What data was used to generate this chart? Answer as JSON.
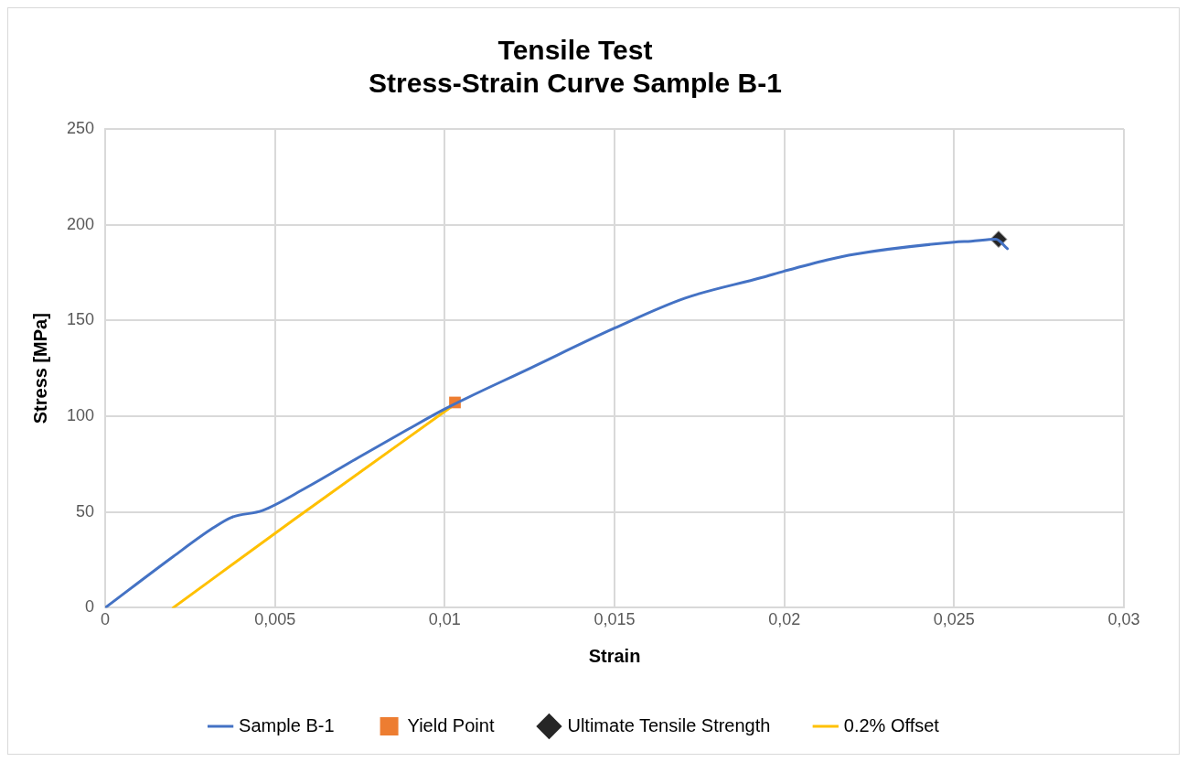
{
  "chart_data": {
    "type": "line",
    "title": "Tensile Test",
    "subtitle": "Stress-Strain Curve Sample B-1",
    "xlabel": "Strain",
    "ylabel": "Stress [MPa]",
    "xlim": [
      0,
      0.03
    ],
    "xticks": [
      0,
      {
        "value": 0.005,
        "label": "0,005"
      },
      {
        "value": 0.01,
        "label": "0,01"
      },
      {
        "value": 0.015,
        "label": "0,015"
      },
      {
        "value": 0.02,
        "label": "0,02"
      },
      {
        "value": 0.025,
        "label": "0,025"
      },
      {
        "value": 0.03,
        "label": "0,03"
      }
    ],
    "ylim": [
      0,
      250
    ],
    "yticks": [
      0,
      50,
      100,
      150,
      200,
      250
    ],
    "grid": true,
    "legend": "bottom",
    "series": [
      {
        "name": "Sample B-1",
        "type": "line",
        "color": "#4472c4",
        "marker": "none",
        "x": [
          0,
          0.002,
          0.00318,
          0.00372,
          0.00463,
          0.0059,
          0.00744,
          0.0088,
          0.01,
          0.01254,
          0.015,
          0.01708,
          0.01935,
          0.02,
          0.02125,
          0.02206,
          0.025,
          0.0255,
          0.02623,
          0.02657
        ],
        "values": [
          0,
          26.7,
          41.7,
          47.2,
          50.8,
          62.5,
          78.3,
          92,
          103.8,
          125.3,
          146,
          161.7,
          172.5,
          175.8,
          181.6,
          184.6,
          190.9,
          191.4,
          192.4,
          187.5
        ]
      },
      {
        "name": "Yield Point",
        "type": "scatter",
        "color": "#ed7d31",
        "marker": "square",
        "x": [
          0.0103
        ],
        "values": [
          107.2
        ]
      },
      {
        "name": "Ultimate Tensile Strength",
        "type": "scatter",
        "color": "#262626",
        "marker": "diamond",
        "x": [
          0.02631
        ],
        "values": [
          192.4
        ]
      },
      {
        "name": "0.2% Offset",
        "type": "line",
        "color": "#ffc000",
        "marker": "none",
        "x": [
          0.002,
          0.00554,
          0.0102
        ],
        "values": [
          0,
          45.8,
          105
        ]
      }
    ]
  }
}
